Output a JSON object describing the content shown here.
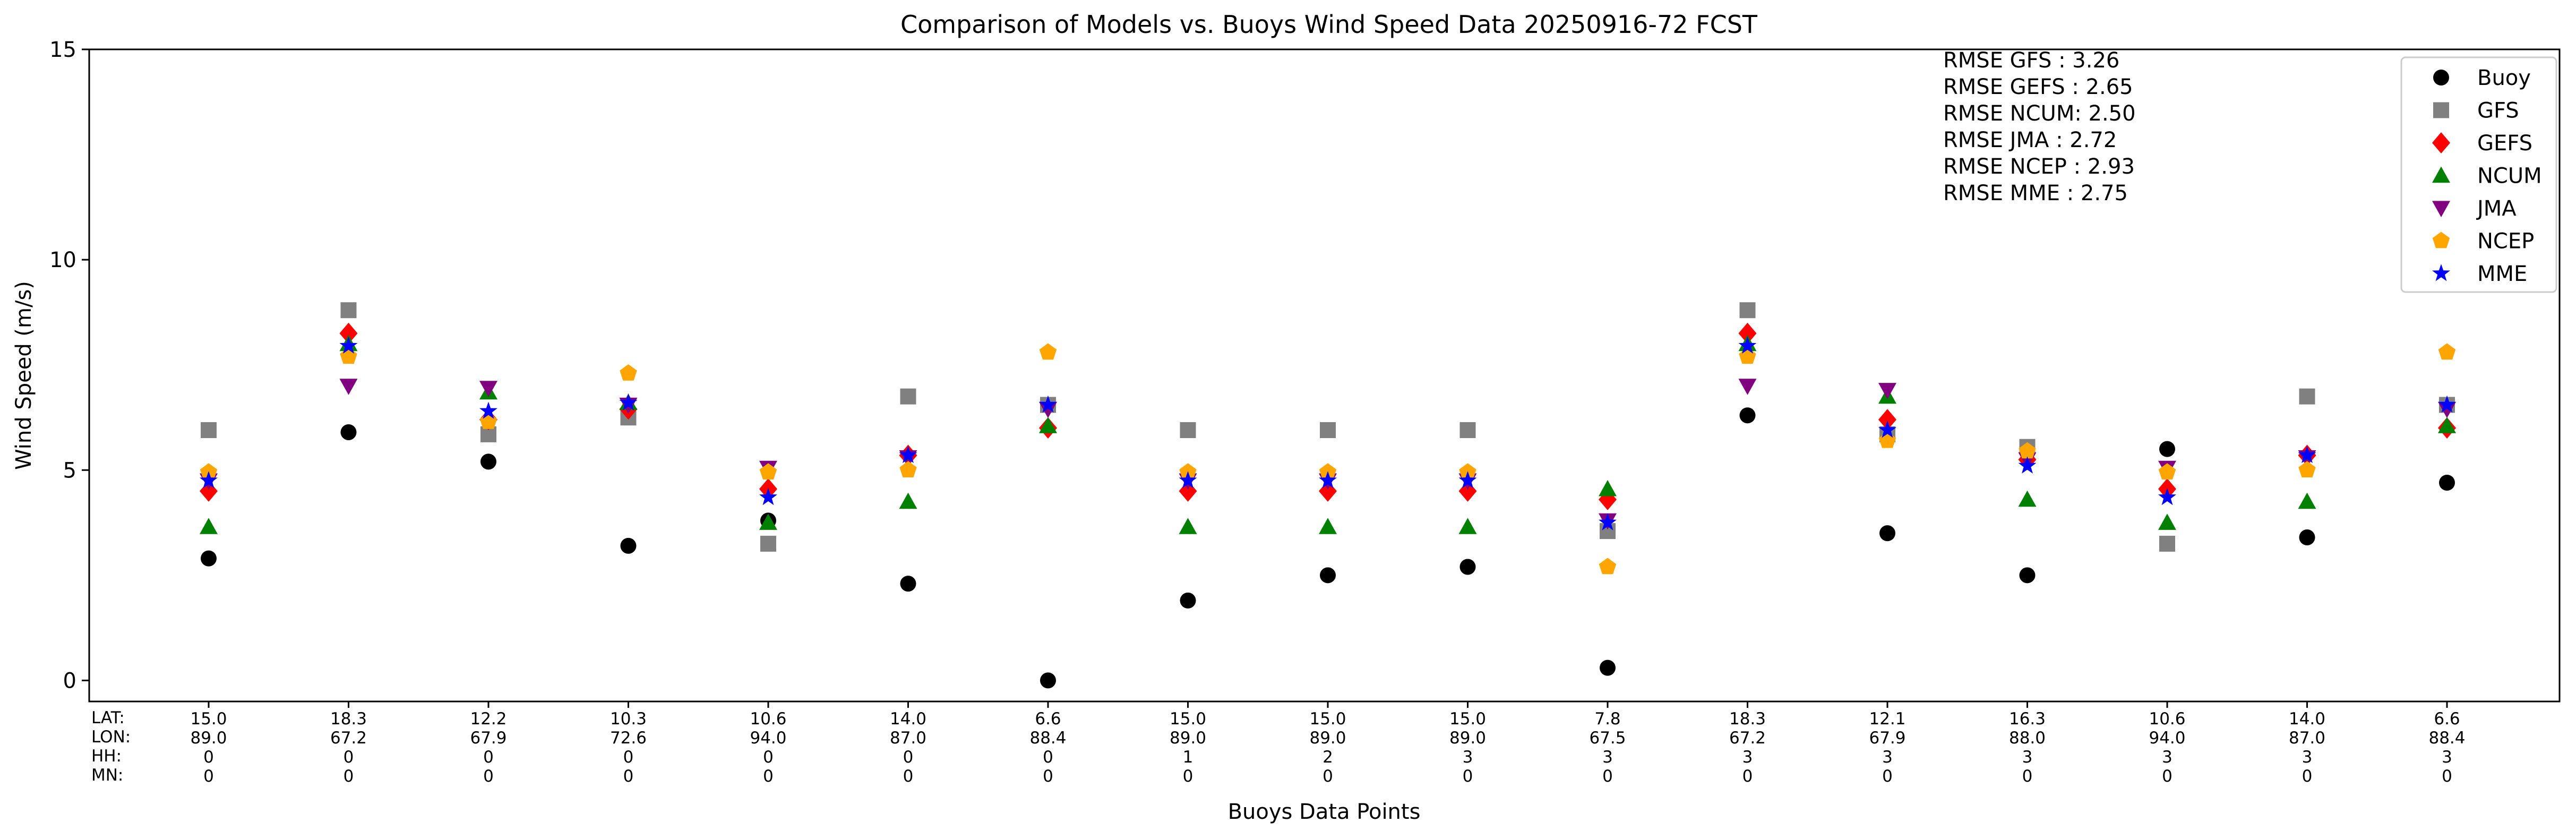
{
  "chart_data": {
    "type": "scatter",
    "title": "Comparison of Models vs. Buoys Wind Speed Data 20250916-72 FCST",
    "xlabel": "Buoys Data Points",
    "ylabel": "Wind Speed (m/s)",
    "ylim": [
      -0.5,
      15
    ],
    "yticks": [
      0,
      5,
      10,
      15
    ],
    "grid": false,
    "legend_position": "top-right",
    "row_labels": [
      "LAT:",
      "LON:",
      "HH:",
      "MN:"
    ],
    "points": [
      {
        "lat": "15.0",
        "lon": "89.0",
        "hh": "0",
        "mn": "0"
      },
      {
        "lat": "18.3",
        "lon": "67.2",
        "hh": "0",
        "mn": "0"
      },
      {
        "lat": "12.2",
        "lon": "67.9",
        "hh": "0",
        "mn": "0"
      },
      {
        "lat": "10.3",
        "lon": "72.6",
        "hh": "0",
        "mn": "0"
      },
      {
        "lat": "10.6",
        "lon": "94.0",
        "hh": "0",
        "mn": "0"
      },
      {
        "lat": "14.0",
        "lon": "87.0",
        "hh": "0",
        "mn": "0"
      },
      {
        "lat": "6.6",
        "lon": "88.4",
        "hh": "0",
        "mn": "0"
      },
      {
        "lat": "15.0",
        "lon": "89.0",
        "hh": "1",
        "mn": "0"
      },
      {
        "lat": "15.0",
        "lon": "89.0",
        "hh": "2",
        "mn": "0"
      },
      {
        "lat": "15.0",
        "lon": "89.0",
        "hh": "3",
        "mn": "0"
      },
      {
        "lat": "7.8",
        "lon": "67.5",
        "hh": "3",
        "mn": "0"
      },
      {
        "lat": "18.3",
        "lon": "67.2",
        "hh": "3",
        "mn": "0"
      },
      {
        "lat": "12.1",
        "lon": "67.9",
        "hh": "3",
        "mn": "0"
      },
      {
        "lat": "16.3",
        "lon": "88.0",
        "hh": "3",
        "mn": "0"
      },
      {
        "lat": "10.6",
        "lon": "94.0",
        "hh": "3",
        "mn": "0"
      },
      {
        "lat": "14.0",
        "lon": "87.0",
        "hh": "3",
        "mn": "0"
      },
      {
        "lat": "6.6",
        "lon": "88.4",
        "hh": "3",
        "mn": "0"
      }
    ],
    "series": [
      {
        "name": "Buoy",
        "marker": "circle",
        "color": "#000000",
        "values": [
          2.9,
          5.9,
          5.2,
          3.2,
          3.8,
          2.3,
          0.0,
          1.9,
          2.5,
          2.7,
          0.3,
          6.3,
          3.5,
          2.5,
          5.5,
          3.4,
          4.7
        ]
      },
      {
        "name": "GFS",
        "marker": "square",
        "color": "#808080",
        "values": [
          5.95,
          8.8,
          5.85,
          6.25,
          3.25,
          6.75,
          6.55,
          5.95,
          5.95,
          5.95,
          3.55,
          8.8,
          5.85,
          5.55,
          3.25,
          6.75,
          6.55
        ]
      },
      {
        "name": "GEFS",
        "marker": "diamond",
        "color": "#ff0000",
        "values": [
          4.5,
          8.25,
          6.2,
          6.45,
          4.55,
          5.35,
          6.0,
          4.5,
          4.5,
          4.5,
          4.3,
          8.25,
          6.2,
          5.25,
          4.55,
          5.35,
          6.0
        ]
      },
      {
        "name": "NCUM",
        "marker": "triangle-up",
        "color": "#008000",
        "values": [
          3.65,
          8.0,
          6.85,
          6.6,
          3.75,
          4.25,
          6.05,
          3.65,
          3.65,
          3.65,
          4.55,
          8.0,
          6.75,
          4.3,
          3.75,
          4.25,
          6.05
        ]
      },
      {
        "name": "JMA",
        "marker": "triangle-down",
        "color": "#800080",
        "values": [
          4.75,
          7.0,
          6.95,
          6.55,
          5.05,
          5.3,
          6.45,
          4.75,
          4.75,
          4.75,
          3.8,
          7.0,
          6.9,
          5.25,
          5.05,
          5.3,
          6.45
        ]
      },
      {
        "name": "NCEP",
        "marker": "pentagon",
        "color": "#ffa500",
        "values": [
          4.95,
          7.7,
          6.15,
          7.3,
          4.95,
          5.0,
          7.8,
          4.95,
          4.95,
          4.95,
          2.7,
          7.7,
          5.7,
          5.45,
          4.95,
          5.0,
          7.8
        ]
      },
      {
        "name": "MME",
        "marker": "star",
        "color": "#0000ff",
        "values": [
          4.75,
          7.95,
          6.4,
          6.6,
          4.35,
          5.35,
          6.55,
          4.75,
          4.75,
          4.75,
          3.75,
          7.95,
          5.95,
          5.1,
          4.35,
          5.35,
          6.55
        ]
      }
    ],
    "annotations": [
      "RMSE GFS   : 3.26",
      "RMSE GEFS : 2.65",
      "RMSE NCUM: 2.50",
      "RMSE JMA    : 2.72",
      "RMSE NCEP : 2.93",
      "RMSE MME  : 2.75"
    ]
  }
}
